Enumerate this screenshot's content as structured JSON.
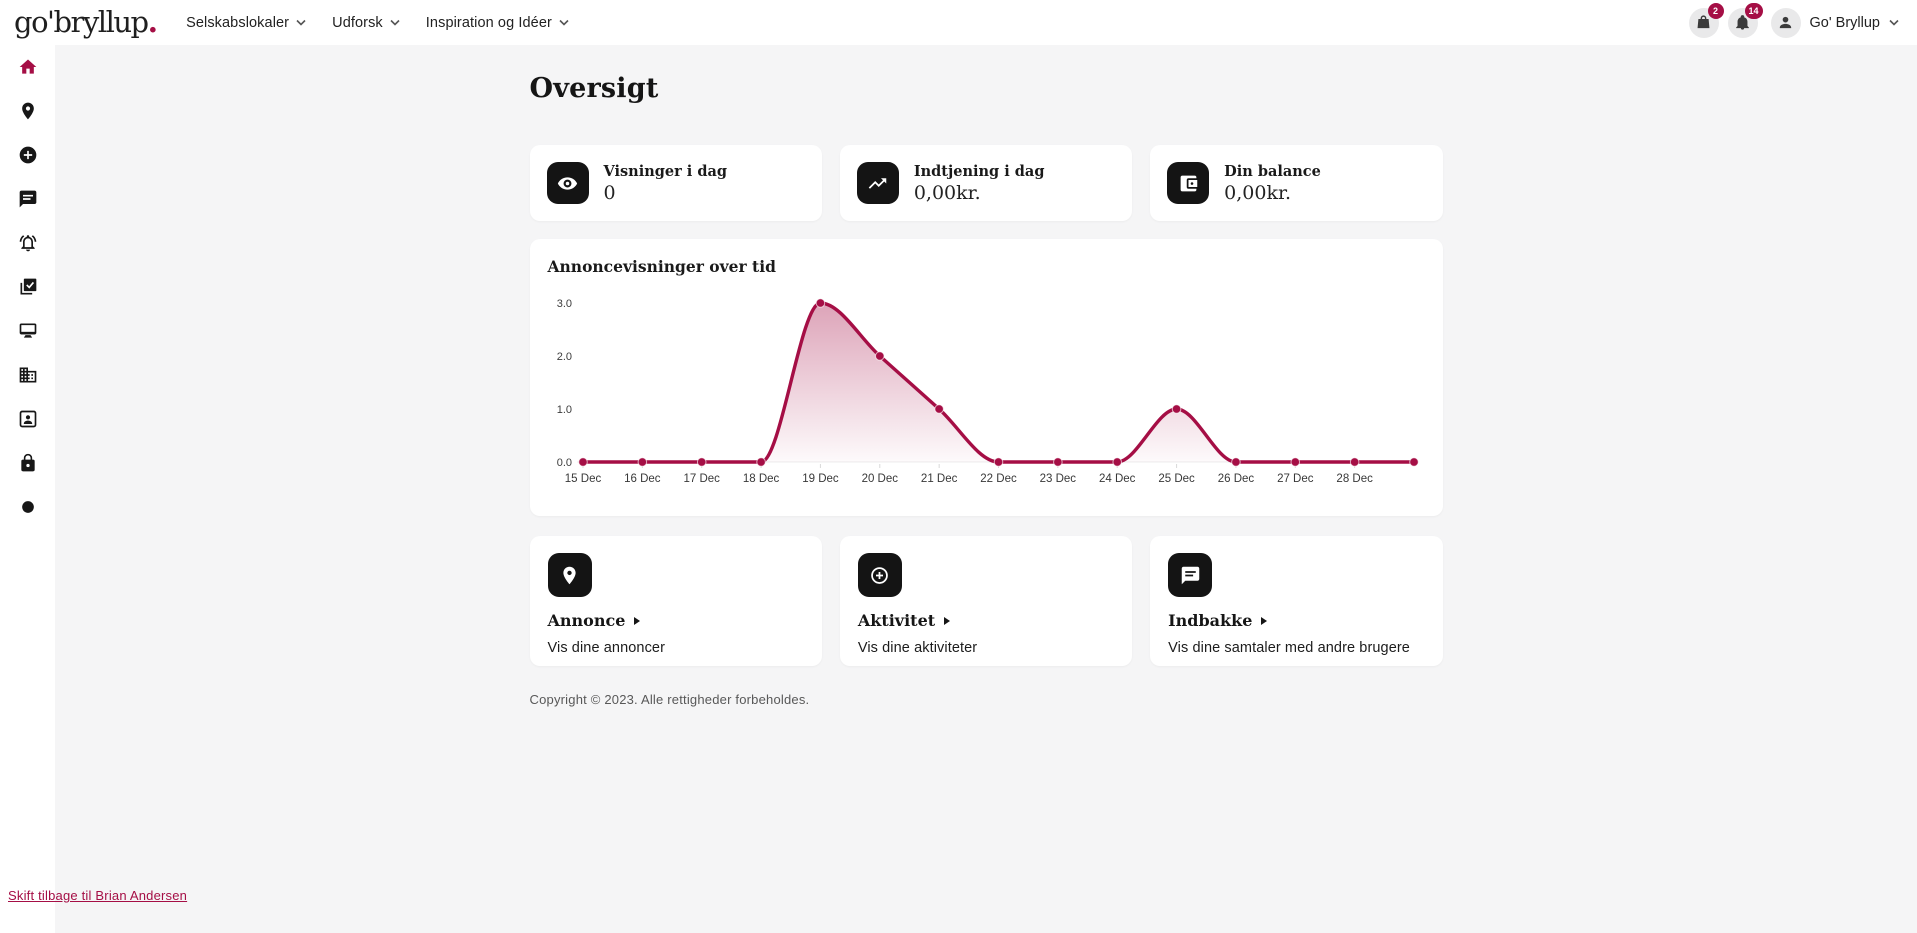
{
  "colors": {
    "accent": "#a50e45",
    "icon_bg": "#141414",
    "page_bg": "#f5f5f6"
  },
  "brand": {
    "logo_text": "go'bryllup",
    "logo_dot": "."
  },
  "topnav": {
    "items": [
      {
        "label": "Selskabslokaler"
      },
      {
        "label": "Udforsk"
      },
      {
        "label": "Inspiration og Idéer"
      }
    ],
    "cart_badge": "2",
    "notifications_badge": "14",
    "account_label": "Go' Bryllup"
  },
  "sidebar": {
    "items": [
      "home",
      "locations",
      "create",
      "messages",
      "notifications",
      "tasks",
      "desktop",
      "company",
      "contacts",
      "security",
      "status"
    ],
    "active": "home"
  },
  "page": {
    "title": "Oversigt"
  },
  "stats": [
    {
      "icon": "eye",
      "label": "Visninger i dag",
      "value": "0"
    },
    {
      "icon": "trending-up",
      "label": "Indtjening i dag",
      "value": "0,00kr."
    },
    {
      "icon": "wallet",
      "label": "Din balance",
      "value": "0,00kr."
    }
  ],
  "chart_data": {
    "type": "area",
    "title": "Annoncevisninger over tid",
    "x": [
      "15 Dec",
      "16 Dec",
      "17 Dec",
      "18 Dec",
      "19 Dec",
      "20 Dec",
      "21 Dec",
      "22 Dec",
      "23 Dec",
      "24 Dec",
      "25 Dec",
      "26 Dec",
      "27 Dec",
      "28 Dec",
      ""
    ],
    "values": [
      0,
      0,
      0,
      0,
      3,
      2,
      1,
      0,
      0,
      0,
      1,
      0,
      0,
      0,
      0
    ],
    "yticks": [
      0,
      1,
      2,
      3
    ],
    "ytick_labels": [
      "0.0",
      "1.0",
      "2.0",
      "3.0"
    ],
    "ylim": [
      0,
      3.3
    ],
    "xlabel": "",
    "ylabel": "",
    "curve": "monotone",
    "grid": false,
    "legend": false,
    "line_color": "#a50e45",
    "marker": true
  },
  "actions": [
    {
      "icon": "map-pin",
      "title": "Annonce",
      "desc": "Vis dine annoncer"
    },
    {
      "icon": "plus-circle",
      "title": "Aktivitet",
      "desc": "Vis dine aktiviteter"
    },
    {
      "icon": "chat",
      "title": "Indbakke",
      "desc": "Vis dine samtaler med andre brugere"
    }
  ],
  "footer": {
    "copyright": "Copyright © 2023. Alle rettigheder forbeholdes.",
    "impersonation_link": "Skift tilbage til Brian Andersen"
  }
}
